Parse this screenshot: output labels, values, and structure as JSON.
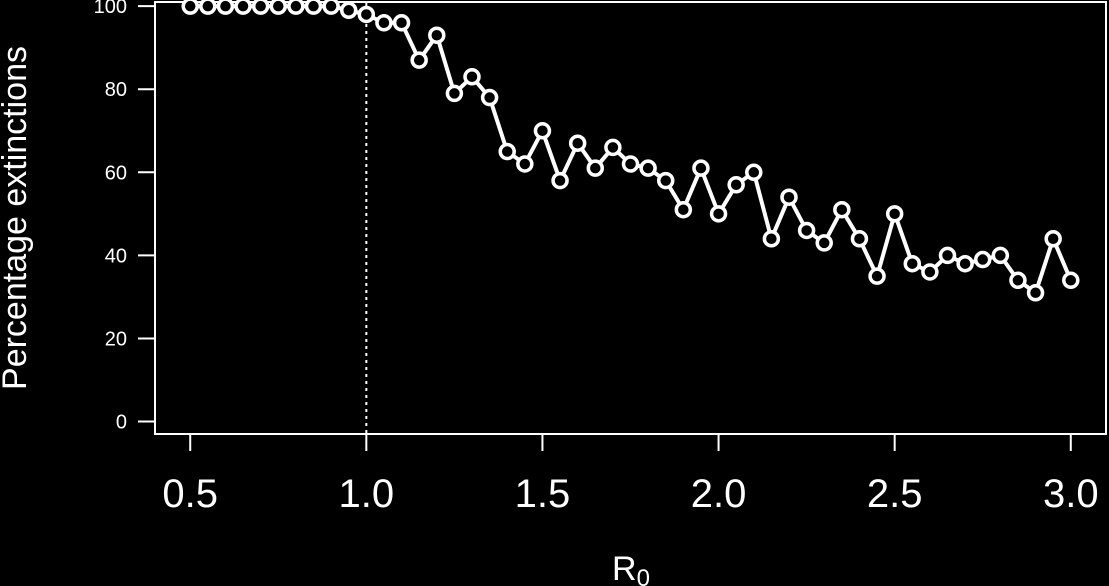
{
  "chart_data": {
    "type": "line",
    "xlabel": "R",
    "xlabel_subscript": "0",
    "ylabel": "Percentage extinctions",
    "xlim": [
      0.4,
      3.1
    ],
    "ylim": [
      -3,
      101
    ],
    "x_ticks": [
      "0.5",
      "1.0",
      "1.5",
      "2.0",
      "2.5",
      "3.0"
    ],
    "y_ticks": [
      "0",
      "20",
      "40",
      "60",
      "80",
      "100"
    ],
    "reference_line_x": 1.0,
    "grid": false,
    "colors": {
      "background": "#000000",
      "foreground": "#ffffff"
    },
    "series": [
      {
        "x": [
          0.5,
          0.55,
          0.6,
          0.65,
          0.7,
          0.75,
          0.8,
          0.85,
          0.9,
          0.95,
          1.0,
          1.05,
          1.1,
          1.15,
          1.2,
          1.25,
          1.3,
          1.35,
          1.4,
          1.45,
          1.5,
          1.55,
          1.6,
          1.65,
          1.7,
          1.75,
          1.8,
          1.85,
          1.9,
          1.95,
          2.0,
          2.05,
          2.1,
          2.15,
          2.2,
          2.25,
          2.3,
          2.35,
          2.4,
          2.45,
          2.5,
          2.55,
          2.6,
          2.65,
          2.7,
          2.75,
          2.8,
          2.85,
          2.9,
          2.95,
          3.0
        ],
        "values": [
          100,
          100,
          100,
          100,
          100,
          100,
          100,
          100,
          100,
          99,
          98,
          96,
          96,
          87,
          93,
          79,
          83,
          78,
          65,
          62,
          70,
          58,
          67,
          61,
          66,
          62,
          61,
          58,
          51,
          61,
          50,
          57,
          60,
          44,
          54,
          46,
          43,
          51,
          44,
          35,
          50,
          38,
          36,
          40,
          38,
          39,
          40,
          34,
          31,
          44,
          34
        ]
      }
    ]
  }
}
